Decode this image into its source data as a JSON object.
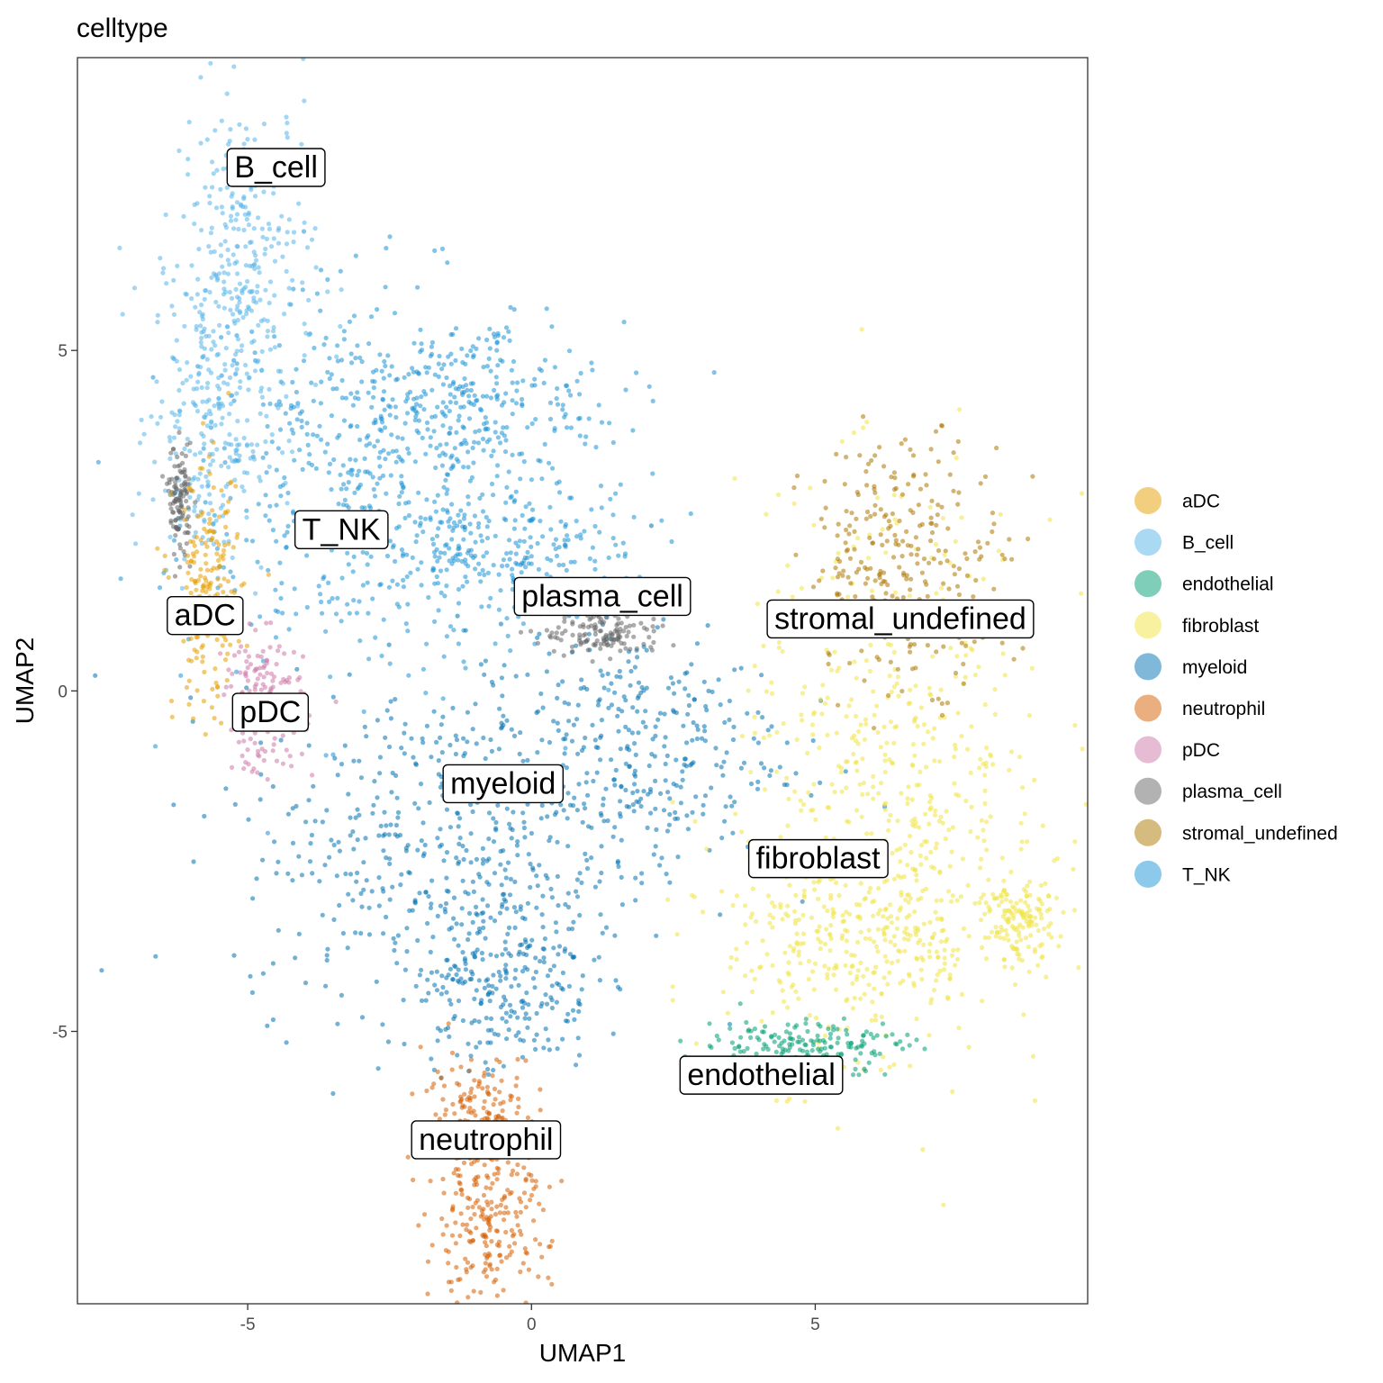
{
  "chart_data": {
    "type": "scatter",
    "title": "celltype",
    "xlabel": "UMAP1",
    "ylabel": "UMAP2",
    "xlim": [
      -8.0,
      9.8
    ],
    "ylim": [
      -9.0,
      9.3
    ],
    "xticks": [
      -5,
      0,
      5
    ],
    "yticks": [
      -5,
      0,
      5
    ],
    "xtick_labels": [
      "-5",
      "0",
      "5"
    ],
    "ytick_labels": [
      "-5",
      "0",
      "5"
    ],
    "grid": false,
    "legend_position": "right",
    "categories": [
      {
        "name": "aDC",
        "color": "#E69F00"
      },
      {
        "name": "B_cell",
        "color": "#56B4E9"
      },
      {
        "name": "endothelial",
        "color": "#009E73"
      },
      {
        "name": "fibroblast",
        "color": "#F0E442"
      },
      {
        "name": "myeloid",
        "color": "#0072B2"
      },
      {
        "name": "neutrophil",
        "color": "#D55E00"
      },
      {
        "name": "pDC",
        "color": "#CC79A7"
      },
      {
        "name": "plasma_cell",
        "color": "#666666"
      },
      {
        "name": "stromal_undefined",
        "color": "#AD7700"
      },
      {
        "name": "T_NK",
        "color": "#1B93D6"
      }
    ],
    "cluster_labels": [
      {
        "text": "B_cell",
        "x": -4.5,
        "y": 7.7
      },
      {
        "text": "T_NK",
        "x": -3.35,
        "y": 2.38
      },
      {
        "text": "aDC",
        "x": -5.75,
        "y": 1.12
      },
      {
        "text": "pDC",
        "x": -4.6,
        "y": -0.3
      },
      {
        "text": "plasma_cell",
        "x": 1.25,
        "y": 1.4
      },
      {
        "text": "stromal_undefined",
        "x": 6.5,
        "y": 1.07
      },
      {
        "text": "myeloid",
        "x": -0.5,
        "y": -1.35
      },
      {
        "text": "fibroblast",
        "x": 5.05,
        "y": -2.45
      },
      {
        "text": "endothelial",
        "x": 4.05,
        "y": -5.63
      },
      {
        "text": "neutrophil",
        "x": -0.8,
        "y": -6.58
      }
    ],
    "clusters": [
      {
        "category": "T_NK",
        "cx": -3.0,
        "cy": 3.0,
        "sx": 1.6,
        "sy": 1.5
      },
      {
        "category": "T_NK",
        "cx": -1.2,
        "cy": 4.2,
        "sx": 1.4,
        "sy": 0.6
      },
      {
        "category": "T_NK",
        "cx": -0.6,
        "cy": 2.0,
        "sx": 1.3,
        "sy": 0.5
      },
      {
        "category": "B_cell",
        "cx": -5.0,
        "cy": 6.3,
        "sx": 0.6,
        "sy": 1.3
      },
      {
        "category": "B_cell",
        "cx": -5.7,
        "cy": 4.0,
        "sx": 0.5,
        "sy": 1.2
      },
      {
        "category": "myeloid",
        "cx": -1.6,
        "cy": -2.3,
        "sx": 1.8,
        "sy": 1.2
      },
      {
        "category": "myeloid",
        "cx": 1.6,
        "cy": -0.8,
        "sx": 1.4,
        "sy": 0.9
      },
      {
        "category": "myeloid",
        "cx": -0.5,
        "cy": -4.2,
        "sx": 0.8,
        "sy": 0.7
      },
      {
        "category": "fibroblast",
        "cx": 6.4,
        "cy": -1.3,
        "sx": 1.4,
        "sy": 2.0
      },
      {
        "category": "fibroblast",
        "cx": 5.8,
        "cy": -3.6,
        "sx": 1.2,
        "sy": 0.8
      },
      {
        "category": "fibroblast",
        "cx": 8.6,
        "cy": -3.4,
        "sx": 0.3,
        "sy": 0.3
      },
      {
        "category": "stromal_undefined",
        "cx": 6.6,
        "cy": 1.9,
        "sx": 0.9,
        "sy": 0.9
      },
      {
        "category": "endothelial",
        "cx": 4.8,
        "cy": -5.2,
        "sx": 0.9,
        "sy": 0.2
      },
      {
        "category": "neutrophil",
        "cx": -0.8,
        "cy": -8.0,
        "sx": 0.55,
        "sy": 0.6
      },
      {
        "category": "neutrophil",
        "cx": -0.9,
        "cy": -6.3,
        "sx": 0.5,
        "sy": 0.5
      },
      {
        "category": "plasma_cell",
        "cx": 1.3,
        "cy": 0.85,
        "sx": 0.55,
        "sy": 0.18
      },
      {
        "category": "plasma_cell",
        "cx": -6.2,
        "cy": 2.8,
        "sx": 0.1,
        "sy": 0.4
      },
      {
        "category": "aDC",
        "cx": -5.7,
        "cy": 1.4,
        "sx": 0.3,
        "sy": 0.9
      },
      {
        "category": "pDC",
        "cx": -4.7,
        "cy": -0.2,
        "sx": 0.35,
        "sy": 0.5
      }
    ]
  }
}
